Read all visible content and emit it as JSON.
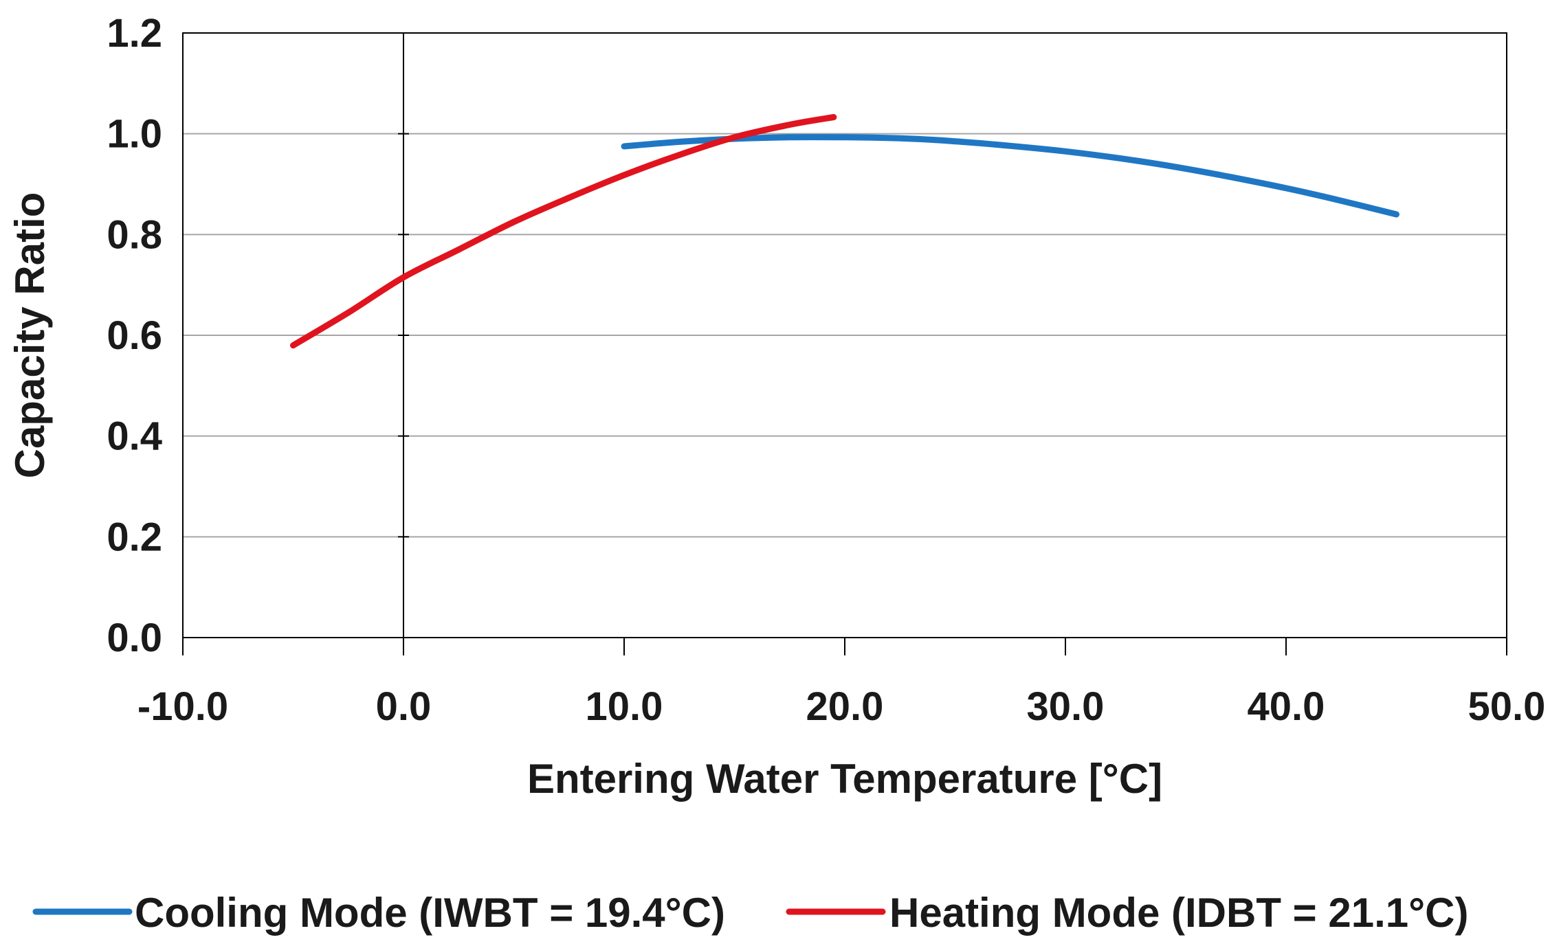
{
  "chart_data": {
    "type": "line",
    "title": "",
    "xlabel": "Entering Water Temperature [°C]",
    "ylabel": "Capacity Ratio",
    "xlim": [
      -10,
      50
    ],
    "ylim": [
      0,
      1.2
    ],
    "x_ticks": [
      -10,
      0,
      10,
      20,
      30,
      40,
      50
    ],
    "x_tick_labels": [
      "-10.0",
      "0.0",
      "10.0",
      "20.0",
      "30.0",
      "40.0",
      "50.0"
    ],
    "y_ticks": [
      0,
      0.2,
      0.4,
      0.6,
      0.8,
      1.0,
      1.2
    ],
    "y_tick_labels": [
      "0.0",
      "0.2",
      "0.4",
      "0.6",
      "0.8",
      "1.0",
      "1.2"
    ],
    "grid": "horizontal",
    "legend_position": "bottom",
    "series": [
      {
        "name": "Cooling Mode (IWBT = 19.4°C)",
        "color": "#1f77c4",
        "x": [
          10,
          12.5,
          15,
          17.5,
          20,
          22.5,
          25,
          27.5,
          30,
          32.5,
          35,
          37.5,
          40,
          42.5,
          45
        ],
        "y": [
          0.975,
          0.984,
          0.99,
          0.993,
          0.993,
          0.991,
          0.985,
          0.976,
          0.965,
          0.951,
          0.934,
          0.914,
          0.892,
          0.867,
          0.84
        ]
      },
      {
        "name": "Heating Mode (IDBT = 21.1°C)",
        "color": "#e0141e",
        "x": [
          -5,
          -2.5,
          0,
          2.5,
          5,
          7.5,
          10,
          12.5,
          15,
          17.5,
          19.5
        ],
        "y": [
          0.58,
          0.645,
          0.715,
          0.77,
          0.825,
          0.873,
          0.918,
          0.958,
          0.993,
          1.018,
          1.033
        ]
      }
    ]
  }
}
